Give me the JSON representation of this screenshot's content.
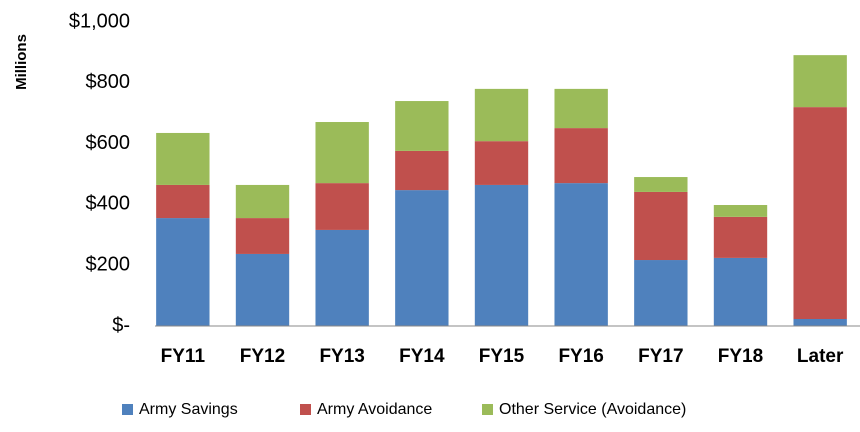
{
  "chart_data": {
    "type": "stacked-bar",
    "y_label": "Millions",
    "categories": [
      "FY11",
      "FY12",
      "FY13",
      "FY14",
      "FY15",
      "FY16",
      "FY17",
      "FY18",
      "Later"
    ],
    "series": [
      {
        "name": "Army Savings",
        "color": "#4f81bd",
        "values": [
          355,
          237,
          316,
          447,
          464,
          470,
          217,
          224,
          23
        ]
      },
      {
        "name": "Army Avoidance",
        "color": "#c0504d",
        "values": [
          109,
          118,
          154,
          129,
          144,
          181,
          224,
          135,
          697
        ]
      },
      {
        "name": "Other Service (Avoidance)",
        "color": "#9bbb59",
        "values": [
          171,
          109,
          201,
          164,
          172,
          129,
          49,
          39,
          171
        ]
      }
    ],
    "ylim": [
      0,
      1000
    ],
    "yticks": [
      {
        "value": 0,
        "label": "$-"
      },
      {
        "value": 200,
        "label": "$200"
      },
      {
        "value": 400,
        "label": "$400"
      },
      {
        "value": 600,
        "label": "$600"
      },
      {
        "value": 800,
        "label": "$800"
      },
      {
        "value": 1000,
        "label": "$1,000"
      }
    ],
    "grid": false,
    "legend": "bottom"
  }
}
